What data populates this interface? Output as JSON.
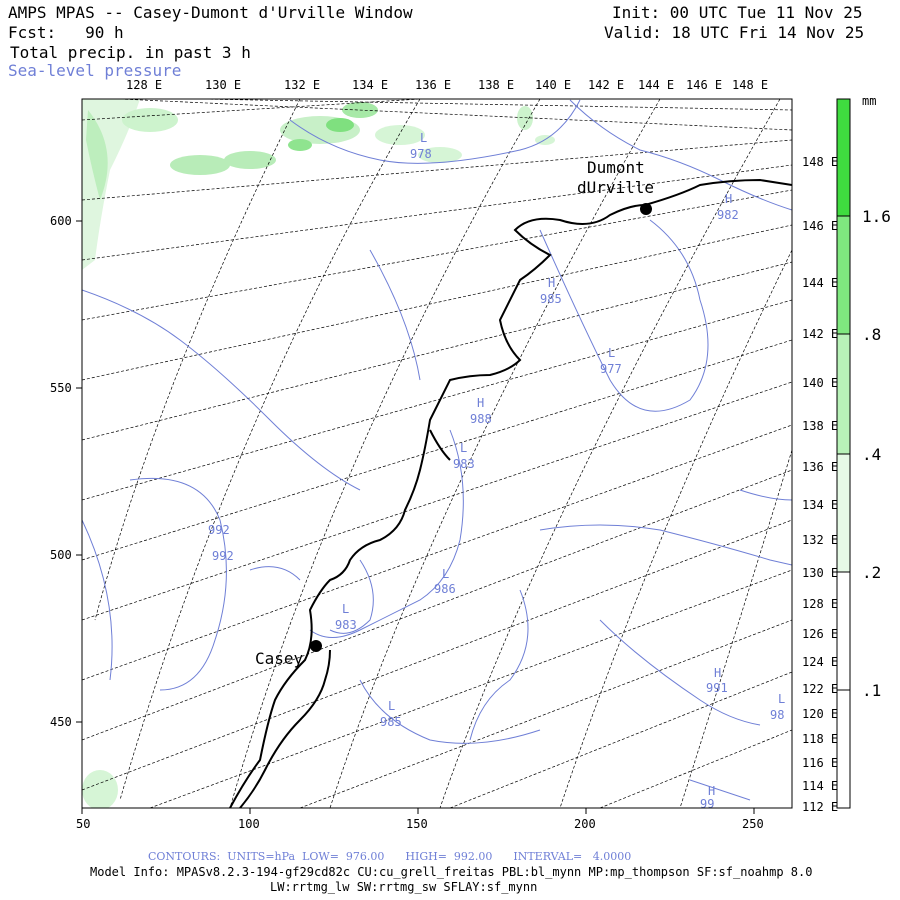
{
  "header": {
    "title": "AMPS MPAS -- Casey-Dumont d'Urville Window",
    "forecast": "Fcst:   90 h",
    "field": "Total precip. in past 3 h",
    "overlay": "Sea-level pressure",
    "init": "Init: 00 UTC Tue 11 Nov 25",
    "valid": "Valid: 18 UTC Fri 14 Nov 25"
  },
  "map": {
    "x_axis_labels": [
      "50",
      "100",
      "150",
      "200",
      "250"
    ],
    "x_axis_values": [
      50,
      100,
      150,
      200,
      250
    ],
    "y_axis_labels": [
      "450",
      "500",
      "550",
      "600"
    ],
    "y_axis_values": [
      450,
      500,
      550,
      600
    ],
    "top_longitudes": [
      "128 E",
      "130 E",
      "132 E",
      "134 E",
      "136 E",
      "138 E",
      "140 E",
      "142 E",
      "144 E",
      "146 E",
      "148 E"
    ],
    "right_longitudes": [
      "148 E",
      "146 E",
      "144 E",
      "142 E",
      "140 E",
      "138 E",
      "136 E",
      "134 E",
      "132 E",
      "130 E",
      "128 E",
      "126 E",
      "124 E",
      "122 E",
      "120 E",
      "118 E",
      "116 E",
      "114 E",
      "112 E"
    ],
    "stations": [
      {
        "name_line1": "Dumont",
        "name_line2": "dUrville"
      },
      {
        "name_line1": "Casey",
        "name_line2": ""
      }
    ],
    "pressure_labels": [
      {
        "letter": "L",
        "value": "978"
      },
      {
        "letter": "H",
        "value": "982"
      },
      {
        "letter": "H",
        "value": "985"
      },
      {
        "letter": "L",
        "value": "977"
      },
      {
        "letter": "H",
        "value": "988"
      },
      {
        "letter": "L",
        "value": "983"
      },
      {
        "letter": "",
        "value": "992"
      },
      {
        "letter": "",
        "value": "992"
      },
      {
        "letter": "L",
        "value": "986"
      },
      {
        "letter": "L",
        "value": "983"
      },
      {
        "letter": "L",
        "value": "985"
      },
      {
        "letter": "H",
        "value": "991"
      },
      {
        "letter": "L",
        "value": "98"
      },
      {
        "letter": "H",
        "value": "99"
      }
    ]
  },
  "colorbar": {
    "unit": "mm",
    "labels": [
      "1.6",
      ".8",
      ".4",
      ".2",
      ".1"
    ],
    "colors": [
      "#3fdc3f",
      "#7fe87f",
      "#b8f2b8",
      "#e6fae6"
    ]
  },
  "footer": {
    "contours": "CONTOURS:  UNITS=hPa  LOW=  976.00      HIGH=  992.00      INTERVAL=   4.0000",
    "model_info": "Model Info: MPASv8.2.3-194-gf29cd82c CU:cu_grell_freitas PBL:bl_mynn MP:mp_thompson SF:sf_noahmp 8.0",
    "model_info2": "LW:rrtmg_lw SW:rrtmg_sw SFLAY:sf_mynn"
  },
  "colors": {
    "contour": "#6f7fd6",
    "coast": "#000000",
    "grid": "#000000",
    "precip_light": "#cdf3cd",
    "precip_medium": "#7fe07f"
  }
}
